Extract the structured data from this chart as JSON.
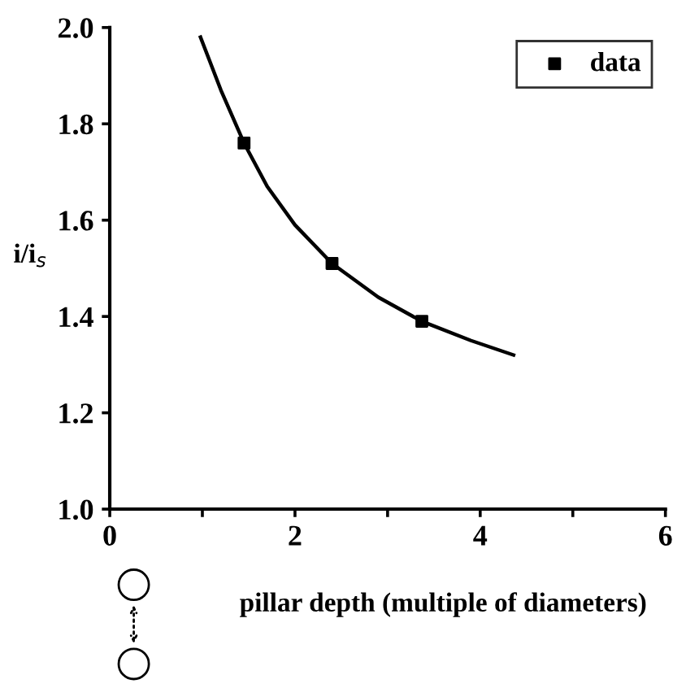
{
  "chart_data": {
    "type": "line",
    "xlabel": "pillar depth (multiple of diameters)",
    "ylabel": "i/i$_{s}$",
    "series": [
      {
        "color": "#000000",
        "x": [
          0.98,
          1.2,
          1.45,
          1.7,
          2.0,
          2.4,
          2.9,
          3.37,
          3.9,
          4.36
        ],
        "values": [
          1.98,
          1.87,
          1.76,
          1.67,
          1.59,
          1.51,
          1.44,
          1.39,
          1.35,
          1.32
        ],
        "marker": "none"
      },
      {
        "type": "scatter",
        "name": "data",
        "color": "#000000",
        "x": [
          1.45,
          2.4,
          3.37
        ],
        "values": [
          1.76,
          1.51,
          1.39
        ],
        "marker": "square"
      }
    ],
    "xlim": [
      0,
      6
    ],
    "xticks": [
      0,
      {
        "value": 1,
        "label": null
      },
      2,
      {
        "value": 3,
        "label": null
      },
      4,
      {
        "value": 5,
        "label": null
      },
      6
    ],
    "ylim": [
      1.0,
      2.0
    ],
    "yticks": [
      {
        "value": 1.0,
        "label": "1.0"
      },
      1.2,
      1.4,
      1.6,
      1.8,
      {
        "value": 2.0,
        "label": "2.0"
      }
    ],
    "grid": false,
    "legend": "top right"
  }
}
